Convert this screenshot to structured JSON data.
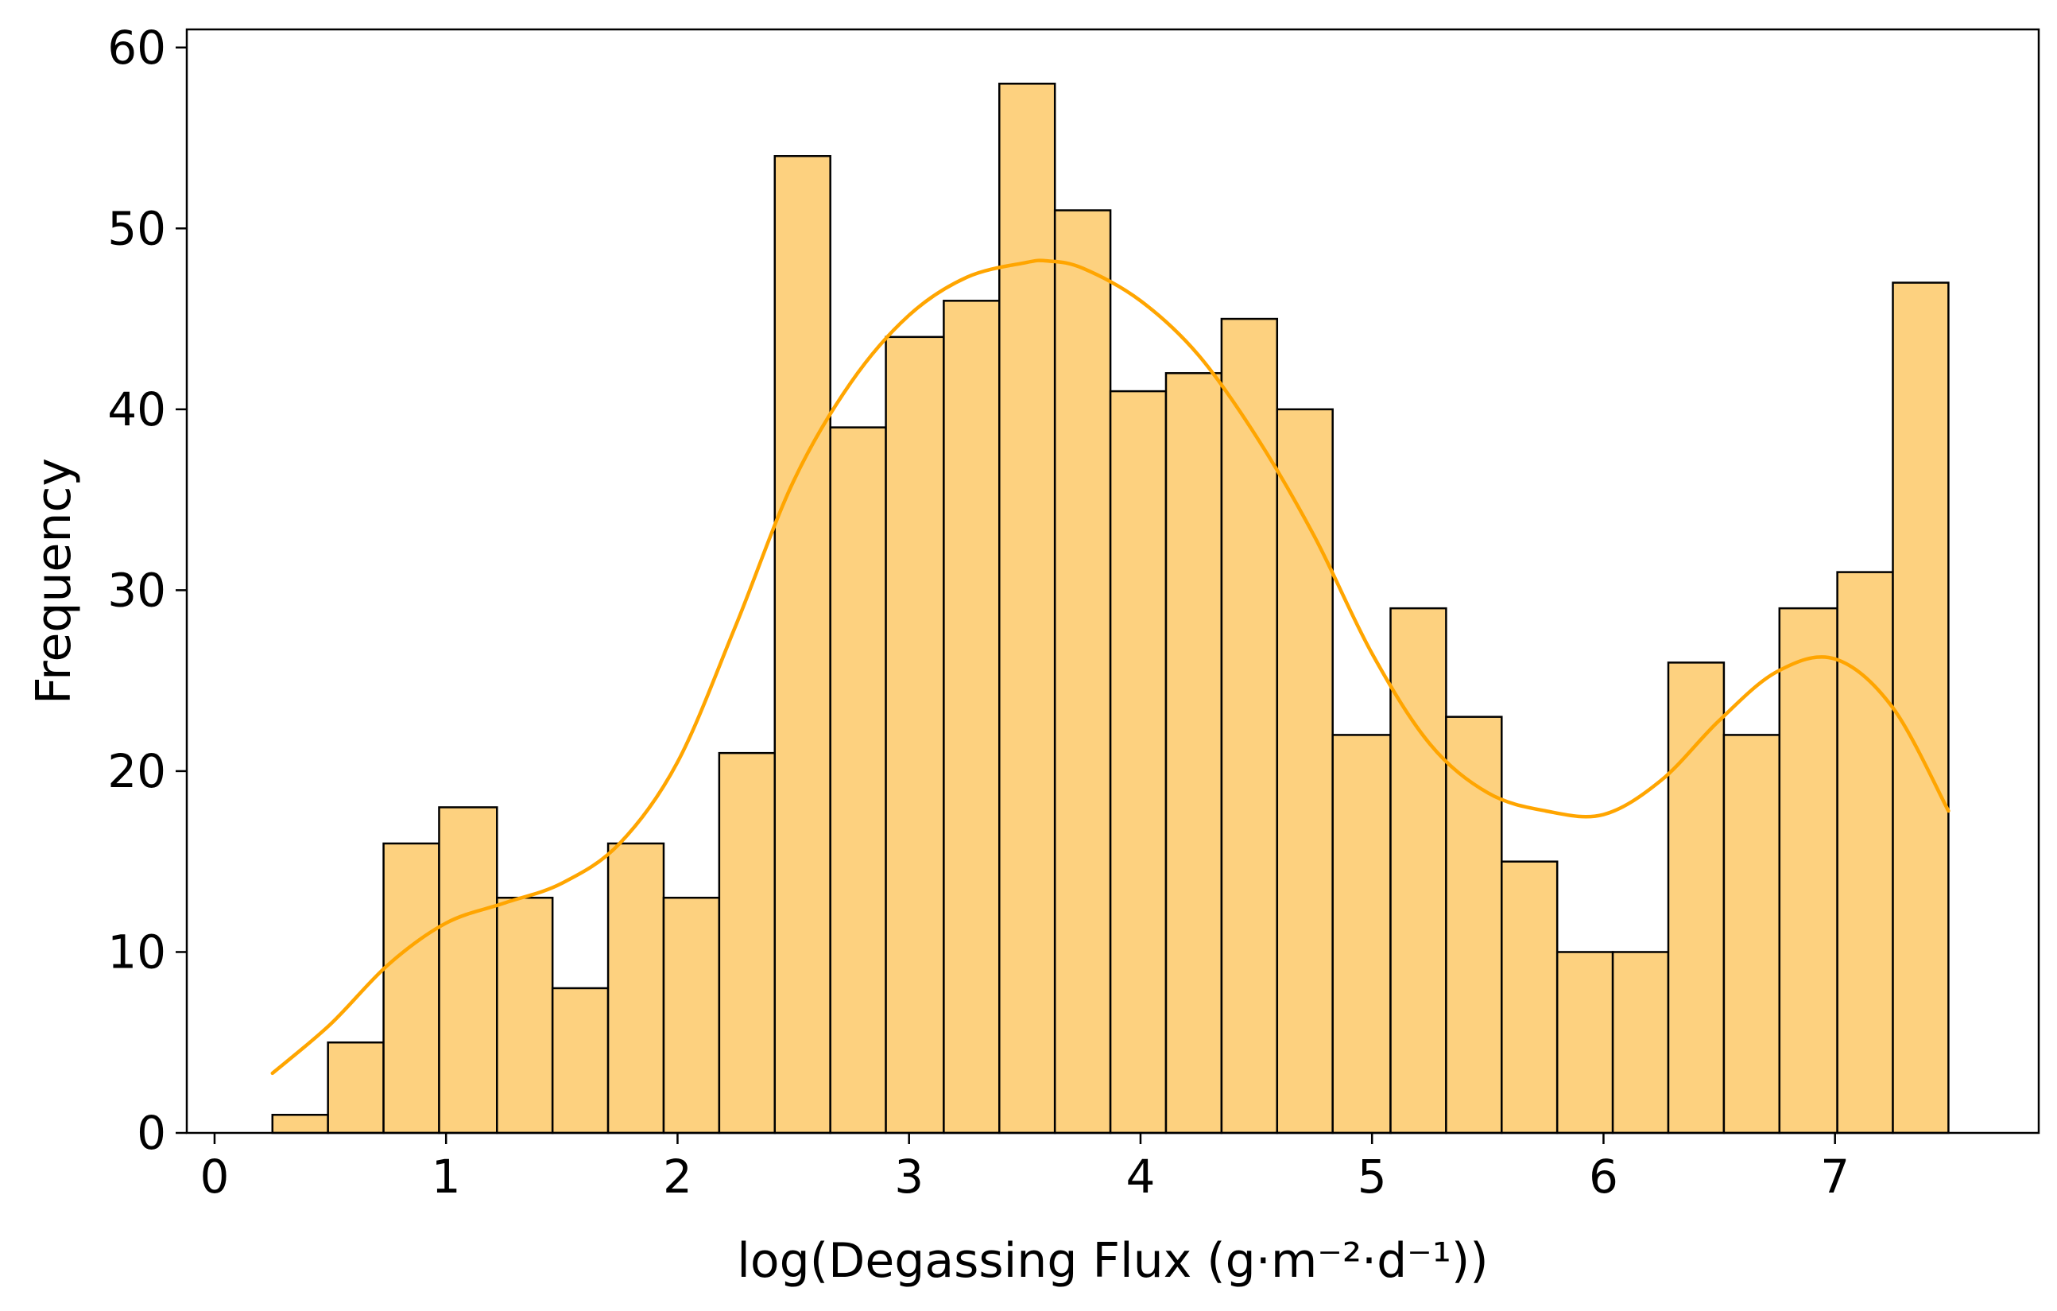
{
  "chart_data": {
    "type": "bar",
    "subtype": "histogram with KDE line",
    "title": "",
    "xlabel": "log(Degassing Flux (g·m⁻²·d⁻¹))",
    "ylabel": "Frequency",
    "xlim": [
      -0.12,
      7.88
    ],
    "ylim": [
      0,
      61
    ],
    "grid": false,
    "x_ticks": [
      0,
      1,
      2,
      3,
      4,
      5,
      6,
      7
    ],
    "y_ticks": [
      0,
      10,
      20,
      30,
      40,
      50,
      60
    ],
    "bar_fill": "#fdd17f",
    "bar_edge": "#000000",
    "line_color": "#ffa500",
    "bins": [
      {
        "x0": 0.25,
        "x1": 0.49,
        "count": 1
      },
      {
        "x0": 0.49,
        "x1": 0.73,
        "count": 5
      },
      {
        "x0": 0.73,
        "x1": 0.97,
        "count": 16
      },
      {
        "x0": 0.97,
        "x1": 1.22,
        "count": 18
      },
      {
        "x0": 1.22,
        "x1": 1.46,
        "count": 13
      },
      {
        "x0": 1.46,
        "x1": 1.7,
        "count": 8
      },
      {
        "x0": 1.7,
        "x1": 1.94,
        "count": 16
      },
      {
        "x0": 1.94,
        "x1": 2.18,
        "count": 13
      },
      {
        "x0": 2.18,
        "x1": 2.42,
        "count": 21
      },
      {
        "x0": 2.42,
        "x1": 2.66,
        "count": 54
      },
      {
        "x0": 2.66,
        "x1": 2.9,
        "count": 39
      },
      {
        "x0": 2.9,
        "x1": 3.15,
        "count": 44
      },
      {
        "x0": 3.15,
        "x1": 3.39,
        "count": 46
      },
      {
        "x0": 3.39,
        "x1": 3.63,
        "count": 58
      },
      {
        "x0": 3.63,
        "x1": 3.87,
        "count": 51
      },
      {
        "x0": 3.87,
        "x1": 4.11,
        "count": 41
      },
      {
        "x0": 4.11,
        "x1": 4.35,
        "count": 42
      },
      {
        "x0": 4.35,
        "x1": 4.59,
        "count": 45
      },
      {
        "x0": 4.59,
        "x1": 4.83,
        "count": 40
      },
      {
        "x0": 4.83,
        "x1": 5.08,
        "count": 22
      },
      {
        "x0": 5.08,
        "x1": 5.32,
        "count": 29
      },
      {
        "x0": 5.32,
        "x1": 5.56,
        "count": 23
      },
      {
        "x0": 5.56,
        "x1": 5.8,
        "count": 15
      },
      {
        "x0": 5.8,
        "x1": 6.04,
        "count": 10
      },
      {
        "x0": 6.04,
        "x1": 6.28,
        "count": 10
      },
      {
        "x0": 6.28,
        "x1": 6.52,
        "count": 26
      },
      {
        "x0": 6.52,
        "x1": 6.76,
        "count": 22
      },
      {
        "x0": 6.76,
        "x1": 7.01,
        "count": 29
      },
      {
        "x0": 7.01,
        "x1": 7.25,
        "count": 31
      },
      {
        "x0": 7.25,
        "x1": 7.49,
        "count": 47
      }
    ],
    "kde_line": {
      "x": [
        0.25,
        0.5,
        0.75,
        1.0,
        1.25,
        1.5,
        1.75,
        2.0,
        2.25,
        2.5,
        2.75,
        3.0,
        3.25,
        3.5,
        3.6,
        3.75,
        4.0,
        4.25,
        4.5,
        4.75,
        5.0,
        5.25,
        5.5,
        5.75,
        6.0,
        6.25,
        6.5,
        6.75,
        7.0,
        7.25,
        7.49
      ],
      "y": [
        3.3,
        6.0,
        9.3,
        11.6,
        12.7,
        13.8,
        16.0,
        20.5,
        28.0,
        36.0,
        41.5,
        45.2,
        47.3,
        48.1,
        48.2,
        47.8,
        46.0,
        43.0,
        38.5,
        33.0,
        26.5,
        21.5,
        18.8,
        17.8,
        17.6,
        19.5,
        22.8,
        25.5,
        26.2,
        23.5,
        17.8
      ]
    }
  }
}
